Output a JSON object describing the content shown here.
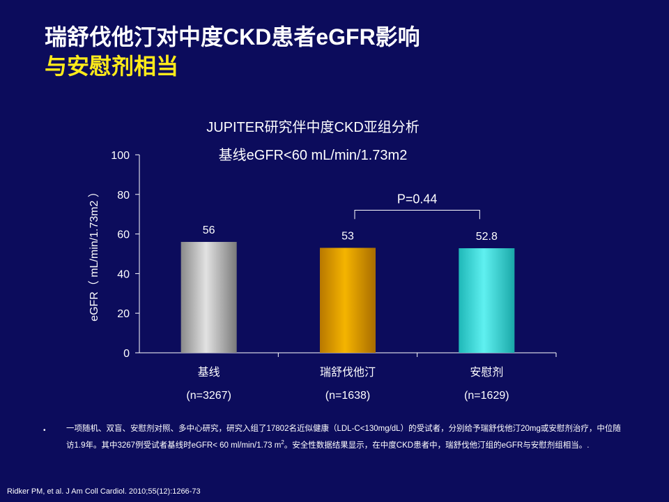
{
  "slide": {
    "title_line1": "瑞舒伐他汀对中度CKD患者eGFR影响",
    "title_line2": "与安慰剂相当"
  },
  "colors": {
    "background": "#0c0c5c",
    "title_highlight": "#ffeb1a",
    "bar_baseline": "#c8c8c8",
    "bar_rosuvastatin": "#f0aa00",
    "bar_placebo": "#40e6e6"
  },
  "chart_data": {
    "type": "bar",
    "title": "JUPITER研究伴中度CKD亚组分析",
    "subtitle": "基线eGFR<60 mL/min/1.73m2",
    "ylabel": "eGFR（ mL/min/1.73m2 ）",
    "ylim": [
      0,
      100
    ],
    "yticks": [
      "0",
      "20",
      "40",
      "60",
      "80",
      "100"
    ],
    "categories": [
      "基线",
      "瑞舒伐他汀",
      "安慰剂"
    ],
    "category_n": [
      "(n=3267)",
      "(n=1638)",
      "(n=1629)"
    ],
    "values": [
      56,
      53,
      52.8
    ],
    "value_labels": [
      "56",
      "53",
      "52.8"
    ],
    "annotation": {
      "text": "P=0.44",
      "between": [
        "瑞舒伐他汀",
        "安慰剂"
      ]
    },
    "grid": false,
    "legend": "none"
  },
  "footnote": {
    "bullet": "•",
    "text_part1": "一项随机、双盲、安慰剂对照、多中心研究，研究入组了17802名近似健康（LDL-C<130mg/dL）的受试者，分别给予瑞舒伐他汀20mg或安慰剂治疗，中位随访1.9年。其中3267例受试者基线时eGFR< 60 ml/min/1.73 m",
    "text_sup": "2",
    "text_part2": "。安全性数据结果显示，在中度CKD患者中，瑞舒伐他汀组的eGFR与安慰剂组相当。."
  },
  "reference": "Ridker PM, et al. J Am Coll Cardiol. 2010;55(12):1266-73"
}
